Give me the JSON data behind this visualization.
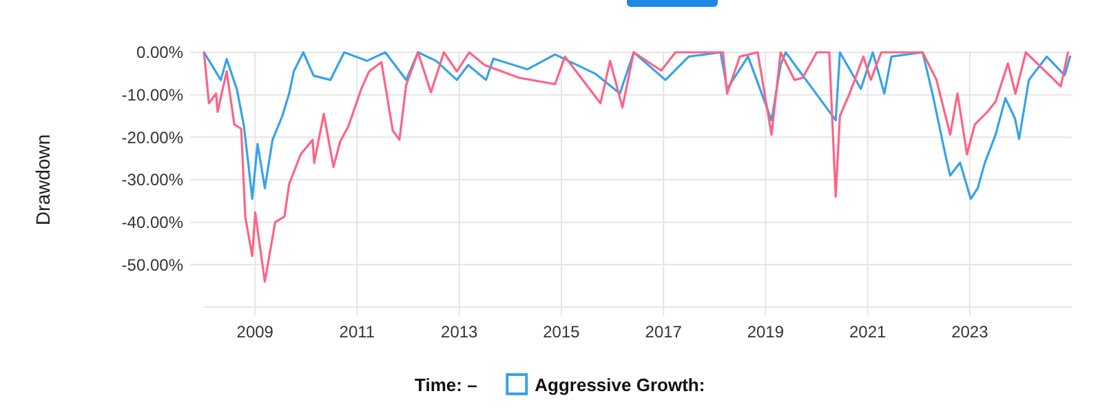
{
  "chart_data": {
    "type": "line",
    "ylabel": "Drawdown",
    "legend_title": "Time: –",
    "legend": "bottom",
    "grid": true,
    "marker": "none",
    "line_style": "solid",
    "xlim": [
      "2008-01-01",
      "2024-12-31"
    ],
    "xticks": [
      {
        "value": "2009-01-01",
        "label": "2009"
      },
      {
        "value": "2011-01-01",
        "label": "2011"
      },
      {
        "value": "2013-01-01",
        "label": "2013"
      },
      {
        "value": "2015-01-01",
        "label": "2015"
      },
      {
        "value": "2017-01-01",
        "label": "2017"
      },
      {
        "value": "2019-01-01",
        "label": "2019"
      },
      {
        "value": "2021-01-01",
        "label": "2021"
      },
      {
        "value": "2023-01-01",
        "label": "2023"
      }
    ],
    "ylim": [
      -60,
      0
    ],
    "yticks": [
      {
        "value": 0,
        "label": "0.00%"
      },
      {
        "value": -10,
        "label": "-10.00%"
      },
      {
        "value": -20,
        "label": "-20.00%"
      },
      {
        "value": -30,
        "label": "-30.00%"
      },
      {
        "value": -40,
        "label": "-40.00%"
      },
      {
        "value": -50,
        "label": "-50.00%"
      }
    ],
    "series": [
      {
        "name": "Aggressive Growth:",
        "color": "#36a2eb",
        "x": [
          "2008-01-02",
          "2008-05-01",
          "2008-06-12",
          "2008-08-24",
          "2008-10-12",
          "2008-11-13",
          "2008-12-12",
          "2009-01-19",
          "2009-03-12",
          "2009-05-06",
          "2009-07-15",
          "2009-09-02",
          "2009-10-05",
          "2009-12-12",
          "2010-02-24",
          "2010-06-24",
          "2010-10-01",
          "2011-03-12",
          "2011-07-22",
          "2011-12-18",
          "2012-03-12",
          "2012-07-19",
          "2012-12-15",
          "2013-03-06",
          "2013-07-12",
          "2013-09-02",
          "2014-05-04",
          "2014-11-17",
          "2015-08-30",
          "2016-02-24",
          "2016-06-02",
          "2017-01-15",
          "2017-07-01",
          "2018-02-13",
          "2018-04-01",
          "2018-08-29",
          "2019-02-13",
          "2019-04-19",
          "2019-05-25",
          "2020-05-17",
          "2020-06-16",
          "2020-11-13",
          "2021-02-06",
          "2021-04-30",
          "2021-06-20",
          "2022-01-29",
          "2022-04-09",
          "2022-07-15",
          "2022-08-14",
          "2022-10-24",
          "2023-01-08",
          "2023-02-27",
          "2023-04-19",
          "2023-07-05",
          "2023-09-13",
          "2023-11-21",
          "2023-12-20",
          "2024-02-28",
          "2024-07-05",
          "2024-11-10",
          "2024-12-19"
        ],
        "values": [
          0,
          -6.5,
          -1.6,
          -8.7,
          -17,
          -26,
          -34.5,
          -21.6,
          -32,
          -20.6,
          -15,
          -9.7,
          -4.5,
          0,
          -5.5,
          -6.5,
          0,
          -2,
          0,
          -6.5,
          0,
          -2,
          -6.5,
          -3,
          -6.5,
          -1.5,
          -4,
          -0.5,
          -5,
          -9.7,
          0,
          -6.5,
          -1,
          0,
          -8.6,
          -1,
          -16,
          -3,
          0,
          -16,
          0,
          -8.6,
          0,
          -9.7,
          -1,
          0,
          -9.7,
          -24.8,
          -29,
          -26,
          -34.5,
          -32,
          -26,
          -19.4,
          -10.8,
          -15.6,
          -20.4,
          -6.5,
          -1,
          -5.4,
          -1
        ]
      },
      {
        "color": "#ff6384",
        "x": [
          "2008-01-02",
          "2008-02-06",
          "2008-03-28",
          "2008-04-08",
          "2008-06-12",
          "2008-08-06",
          "2008-09-24",
          "2008-10-23",
          "2008-12-12",
          "2009-01-02",
          "2009-03-12",
          "2009-05-25",
          "2009-07-30",
          "2009-09-02",
          "2009-11-24",
          "2010-02-17",
          "2010-02-28",
          "2010-05-08",
          "2010-07-16",
          "2010-09-02",
          "2010-10-31",
          "2011-01-30",
          "2011-03-28",
          "2011-06-24",
          "2011-09-13",
          "2011-10-31",
          "2011-12-18",
          "2012-03-12",
          "2012-06-12",
          "2012-09-13",
          "2012-12-15",
          "2013-03-13",
          "2013-07-01",
          "2014-03-06",
          "2014-11-17",
          "2015-01-27",
          "2015-10-08",
          "2015-12-16",
          "2016-03-13",
          "2016-06-02",
          "2016-12-16",
          "2017-03-27",
          "2018-03-03",
          "2018-04-01",
          "2018-07-01",
          "2018-11-06",
          "2019-02-13",
          "2019-04-19",
          "2019-07-27",
          "2019-09-24",
          "2020-01-02",
          "2020-04-01",
          "2020-05-17",
          "2020-06-16",
          "2020-08-24",
          "2020-12-01",
          "2021-01-23",
          "2021-04-08",
          "2022-01-29",
          "2022-05-08",
          "2022-08-14",
          "2022-10-05",
          "2022-12-12",
          "2023-02-06",
          "2023-05-08",
          "2023-07-05",
          "2023-10-01",
          "2023-11-24",
          "2024-02-06",
          "2024-10-13",
          "2024-12-04"
        ],
        "values": [
          0,
          -12,
          -9.7,
          -14,
          -4.5,
          -17,
          -18,
          -38.7,
          -48,
          -37.7,
          -54,
          -40,
          -38.7,
          -31,
          -24,
          -20.6,
          -26,
          -14.5,
          -27,
          -21,
          -17.4,
          -8.7,
          -4.5,
          -2.3,
          -18.4,
          -20.6,
          -7.7,
          0,
          -9.4,
          0,
          -4.5,
          0,
          -3,
          -6,
          -7.5,
          -1,
          -12,
          -2,
          -13,
          0,
          -4.3,
          0,
          0,
          -9.7,
          -1,
          0,
          -19.4,
          0,
          -6.5,
          -6,
          0,
          0,
          -34,
          -15,
          -9.7,
          -1,
          -6.5,
          0,
          0,
          -6.5,
          -19.4,
          -9.7,
          -24,
          -17,
          -14,
          -11.6,
          -2.6,
          -9.7,
          0,
          -8,
          0
        ]
      }
    ]
  }
}
